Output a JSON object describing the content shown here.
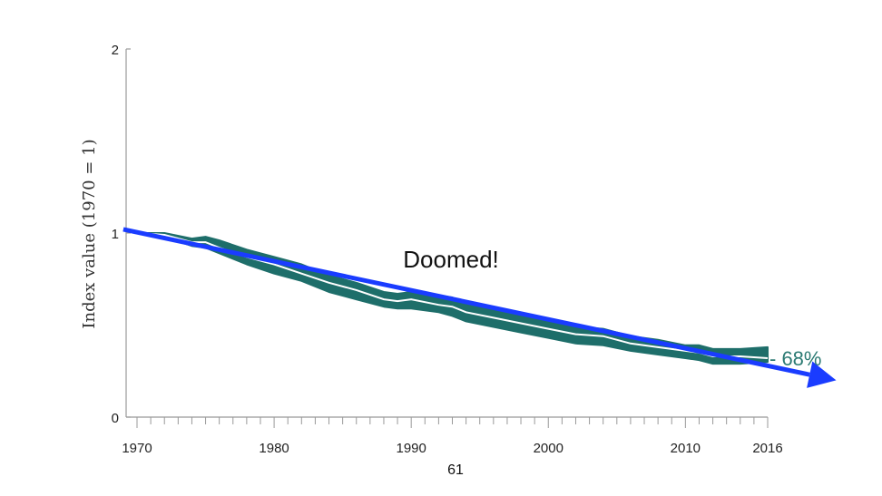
{
  "chart_data": {
    "type": "area",
    "title": "",
    "xlabel": "",
    "ylabel": "Index value (1970 = 1)",
    "xlim": [
      1970,
      2016
    ],
    "ylim": [
      0,
      2
    ],
    "x_tick_labels": [
      1970,
      1980,
      1990,
      2000,
      2010,
      2016
    ],
    "y_tick_labels": [
      0,
      1,
      2
    ],
    "series": [
      {
        "name": "Index",
        "x": [
          1970,
          1972,
          1974,
          1975,
          1976,
          1978,
          1980,
          1982,
          1984,
          1986,
          1988,
          1989,
          1990,
          1992,
          1993,
          1994,
          1996,
          1998,
          2000,
          2002,
          2004,
          2006,
          2008,
          2010,
          2011,
          2012,
          2014,
          2016
        ],
        "upper": [
          1.0,
          1.0,
          0.97,
          0.98,
          0.96,
          0.91,
          0.87,
          0.83,
          0.77,
          0.73,
          0.68,
          0.67,
          0.68,
          0.66,
          0.65,
          0.61,
          0.59,
          0.56,
          0.52,
          0.49,
          0.48,
          0.44,
          0.42,
          0.39,
          0.39,
          0.37,
          0.37,
          0.38
        ],
        "lower": [
          1.0,
          0.98,
          0.93,
          0.92,
          0.89,
          0.83,
          0.78,
          0.74,
          0.68,
          0.64,
          0.6,
          0.59,
          0.59,
          0.57,
          0.55,
          0.52,
          0.49,
          0.46,
          0.43,
          0.4,
          0.39,
          0.36,
          0.34,
          0.32,
          0.31,
          0.29,
          0.29,
          0.3
        ],
        "mid": [
          1.0,
          0.99,
          0.95,
          0.95,
          0.92,
          0.87,
          0.83,
          0.78,
          0.73,
          0.69,
          0.64,
          0.63,
          0.64,
          0.61,
          0.6,
          0.57,
          0.54,
          0.51,
          0.48,
          0.45,
          0.44,
          0.4,
          0.38,
          0.36,
          0.35,
          0.33,
          0.33,
          0.32
        ],
        "color": "#1e6e6a"
      }
    ],
    "trend_arrow": {
      "from": [
        1969,
        1.02
      ],
      "to": [
        2021,
        0.2
      ],
      "color": "#1a3cff"
    },
    "annotations": {
      "headline": "Doomed!",
      "change_label": "- 68%",
      "change_color": "#2b7a73"
    }
  },
  "page_number": "61"
}
